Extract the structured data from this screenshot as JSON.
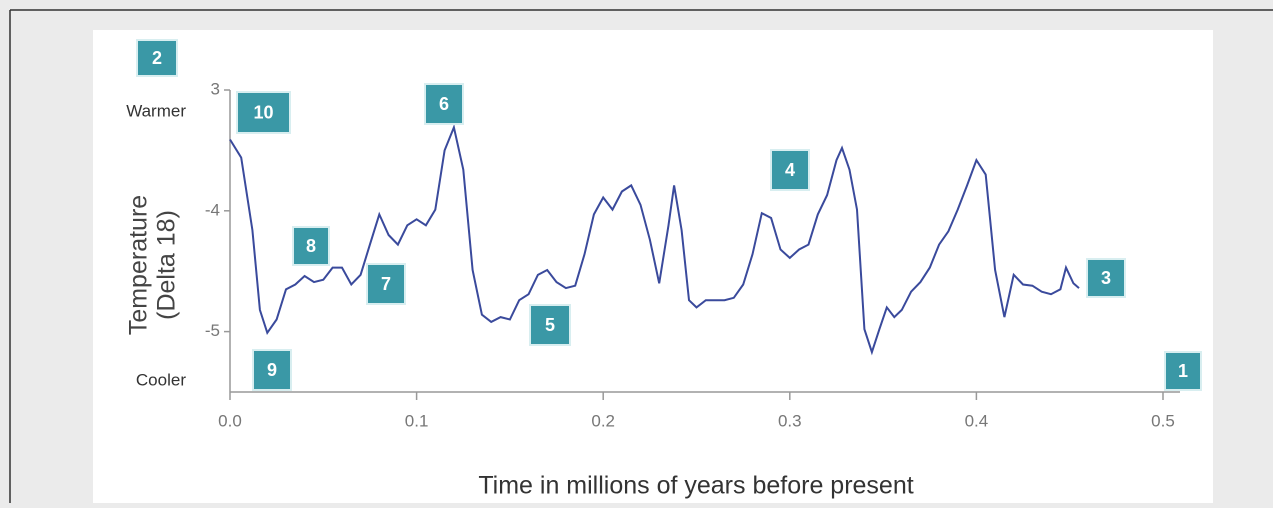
{
  "chart_data": {
    "type": "line",
    "xlabel": "Time in millions of years before present",
    "ylabel_lines": [
      "Temperature",
      "(Delta 18)"
    ],
    "warm_label": "Warmer",
    "cool_label": "Cooler",
    "color": "#3a4a9c",
    "xlim": [
      0,
      0.5
    ],
    "xticks": [
      {
        "value": 0,
        "label": "0.0"
      },
      0.1,
      0.2,
      0.3,
      0.4,
      0.5
    ],
    "ylim": [
      -5.5,
      -3
    ],
    "yticks": [
      {
        "value": -3,
        "label": "3"
      },
      -4,
      -5
    ],
    "x": [
      0,
      0.006,
      0.012,
      0.016,
      0.02,
      0.025,
      0.03,
      0.035,
      0.04,
      0.045,
      0.05,
      0.055,
      0.06,
      0.065,
      0.07,
      0.075,
      0.08,
      0.085,
      0.09,
      0.095,
      0.1,
      0.105,
      0.11,
      0.115,
      0.12,
      0.125,
      0.13,
      0.135,
      0.14,
      0.145,
      0.15,
      0.155,
      0.16,
      0.165,
      0.17,
      0.175,
      0.18,
      0.185,
      0.19,
      0.195,
      0.2,
      0.205,
      0.21,
      0.215,
      0.22,
      0.225,
      0.23,
      0.235,
      0.238,
      0.242,
      0.246,
      0.25,
      0.255,
      0.26,
      0.265,
      0.27,
      0.275,
      0.28,
      0.285,
      0.29,
      0.295,
      0.3,
      0.305,
      0.31,
      0.315,
      0.32,
      0.325,
      0.328,
      0.332,
      0.336,
      0.34,
      0.344,
      0.348,
      0.352,
      0.356,
      0.36,
      0.365,
      0.37,
      0.375,
      0.38,
      0.385,
      0.39,
      0.395,
      0.4,
      0.405,
      0.41,
      0.415,
      0.42,
      0.425,
      0.43,
      0.435,
      0.44,
      0.445,
      0.448,
      0.452,
      0.455
    ],
    "values": [
      -3.41,
      -3.56,
      -4.16,
      -4.82,
      -5.01,
      -4.9,
      -4.65,
      -4.61,
      -4.54,
      -4.59,
      -4.57,
      -4.47,
      -4.47,
      -4.61,
      -4.53,
      -4.28,
      -4.03,
      -4.2,
      -4.28,
      -4.12,
      -4.07,
      -4.12,
      -3.99,
      -3.5,
      -3.31,
      -3.66,
      -4.49,
      -4.86,
      -4.92,
      -4.88,
      -4.9,
      -4.74,
      -4.69,
      -4.53,
      -4.49,
      -4.59,
      -4.64,
      -4.62,
      -4.36,
      -4.03,
      -3.89,
      -3.99,
      -3.84,
      -3.79,
      -3.95,
      -4.24,
      -4.6,
      -4.12,
      -3.79,
      -4.16,
      -4.74,
      -4.8,
      -4.74,
      -4.74,
      -4.74,
      -4.72,
      -4.61,
      -4.36,
      -4.02,
      -4.06,
      -4.32,
      -4.39,
      -4.32,
      -4.28,
      -4.03,
      -3.87,
      -3.58,
      -3.48,
      -3.66,
      -3.99,
      -4.98,
      -5.17,
      -4.98,
      -4.8,
      -4.88,
      -4.82,
      -4.67,
      -4.59,
      -4.47,
      -4.28,
      -4.17,
      -3.99,
      -3.79,
      -3.58,
      -3.7,
      -4.49,
      -4.88,
      -4.53,
      -4.61,
      -4.62,
      -4.67,
      -4.69,
      -4.65,
      -4.47,
      -4.6,
      -4.64
    ],
    "markers": [
      "1",
      "2",
      "3",
      "4",
      "5",
      "6",
      "7",
      "8",
      "9",
      "10"
    ]
  }
}
